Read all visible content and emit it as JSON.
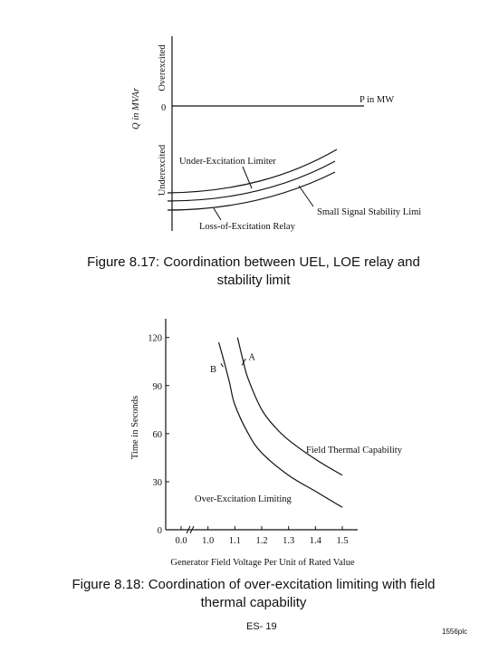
{
  "figure1": {
    "y_label": "Q in MVAr",
    "y_top": "Overexcited",
    "y_bottom": "Underexcited",
    "origin": "0",
    "x_label": "P in MW",
    "curves": [
      "Under-Excitation Limiter",
      "Small Signal Stability Limi",
      "Loss-of-Excitation Relay"
    ],
    "caption_label": "Figure 8.17:",
    "caption": "Coordination between UEL, LOE relay and stability limit"
  },
  "chart_data": {
    "type": "line",
    "xlabel": "Generator Field Voltage Per Unit of Rated Value",
    "ylabel": "Time in Seconds",
    "xlim": [
      0.9,
      1.5
    ],
    "axis_break": true,
    "xticks": [
      {
        "value": 0,
        "label": "0.0"
      },
      {
        "value": 1,
        "label": "1.0"
      },
      1.1,
      1.2,
      1.3,
      1.4,
      1.5
    ],
    "ylim": [
      0,
      130
    ],
    "yticks": [
      0,
      30,
      60,
      90,
      120
    ],
    "color": "#111111",
    "series": [
      {
        "name": "A",
        "x": [
          1.11,
          1.13,
          1.15,
          1.2,
          1.25,
          1.3,
          1.4,
          1.5
        ],
        "values": [
          120,
          106,
          94,
          75,
          64,
          56,
          44,
          34
        ]
      },
      {
        "name": "B",
        "x": [
          1.04,
          1.06,
          1.08,
          1.1,
          1.15,
          1.2,
          1.3,
          1.4,
          1.5
        ],
        "values": [
          117,
          105,
          92,
          78,
          60,
          48,
          34,
          24,
          14
        ]
      }
    ],
    "annotations": [
      "Field Thermal Capability",
      "Over-Excitation Limiting"
    ],
    "caption_label": "Figure 8.18:",
    "caption": "Coordination of over-excitation limiting with field thermal capability"
  },
  "footer": {
    "page": "ES- 19",
    "code": "1556plc"
  }
}
